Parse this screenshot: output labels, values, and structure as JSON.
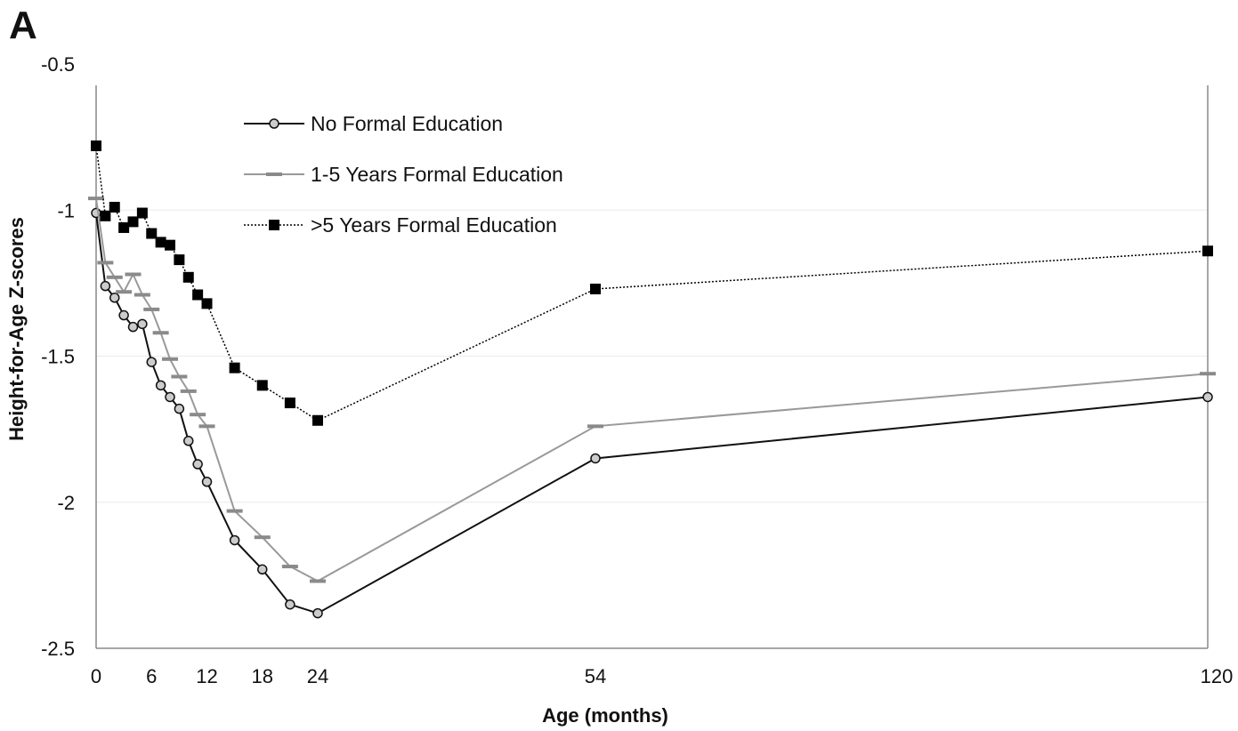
{
  "panel_label": "A",
  "chart_data": {
    "type": "line",
    "title": "",
    "xlabel": "Age (months)",
    "ylabel": "Height-for-Age Z-scores",
    "xlim": [
      0,
      120
    ],
    "ylim": [
      -2.5,
      -0.5
    ],
    "x_scale": "piecewise (0–24 stretched, 24–54, 54–120)",
    "x_ticks": [
      0,
      6,
      12,
      18,
      24,
      54,
      120
    ],
    "x_tick_labels": [
      "0",
      "6",
      "12",
      "18",
      "24",
      "54",
      "120"
    ],
    "y_ticks": [
      -0.5,
      -1,
      -1.5,
      -2,
      -2.5
    ],
    "y_tick_labels": [
      "-0.5",
      "-1",
      "-1.5",
      "-2",
      "-2.5"
    ],
    "grid": "horizontal",
    "legend_position": "top-left",
    "series": [
      {
        "name": "No Formal Education",
        "color": "#111111",
        "marker": "circle",
        "line": "solid",
        "x": [
          0,
          1,
          2,
          3,
          4,
          5,
          6,
          7,
          8,
          9,
          10,
          11,
          12,
          15,
          18,
          21,
          24,
          54,
          120
        ],
        "y": [
          -1.01,
          -1.26,
          -1.3,
          -1.36,
          -1.4,
          -1.39,
          -1.52,
          -1.6,
          -1.64,
          -1.68,
          -1.79,
          -1.87,
          -1.93,
          -2.13,
          -2.23,
          -2.35,
          -2.38,
          -1.85,
          -1.64
        ]
      },
      {
        "name": "1-5 Years Formal Education",
        "color": "#999999",
        "marker": "dash",
        "line": "solid",
        "x": [
          0,
          1,
          2,
          3,
          4,
          5,
          6,
          7,
          8,
          9,
          10,
          11,
          12,
          15,
          18,
          21,
          24,
          54,
          120
        ],
        "y": [
          -0.96,
          -1.18,
          -1.23,
          -1.28,
          -1.22,
          -1.29,
          -1.34,
          -1.42,
          -1.51,
          -1.57,
          -1.62,
          -1.7,
          -1.74,
          -2.03,
          -2.12,
          -2.22,
          -2.27,
          -1.74,
          -1.56
        ]
      },
      {
        "name": ">5 Years Formal Education",
        "color": "#000000",
        "marker": "square",
        "line": "dotted",
        "x": [
          0,
          1,
          2,
          3,
          4,
          5,
          6,
          7,
          8,
          9,
          10,
          11,
          12,
          15,
          18,
          21,
          24,
          54,
          120
        ],
        "y": [
          -0.78,
          -1.02,
          -0.99,
          -1.06,
          -1.04,
          -1.01,
          -1.08,
          -1.11,
          -1.12,
          -1.17,
          -1.23,
          -1.29,
          -1.32,
          -1.54,
          -1.6,
          -1.66,
          -1.72,
          -1.27,
          -1.14
        ]
      }
    ]
  }
}
